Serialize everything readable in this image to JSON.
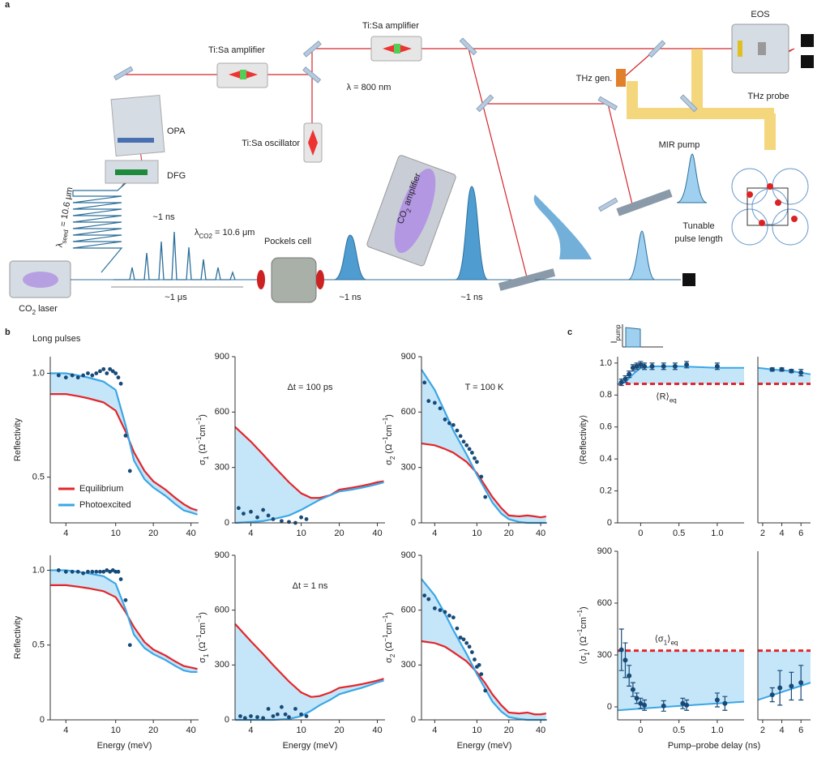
{
  "panel_labels": [
    "a",
    "b",
    "c"
  ],
  "diagram": {
    "labels": [
      "EOS",
      "Ti:Sa amplifier",
      "Ti:Sa amplifier",
      "λ = 800 nm",
      "THz gen.",
      "THz probe",
      "OPA",
      "DFG",
      "Ti:Sa oscillator",
      "MIR pump",
      "Tunable",
      "pulse length",
      "~1 ns",
      [
        {
          "t": "λ"
        },
        {
          "sub": "CO2"
        },
        {
          "t": " = 10.6 μm"
        }
      ],
      "Pockels cell",
      [
        {
          "t": "CO"
        },
        {
          "sub": "2"
        },
        {
          "t": " amplifier"
        }
      ],
      "~1 μs",
      "~1 ns",
      "~1 ns",
      [
        {
          "t": "CO"
        },
        {
          "sub": "2"
        },
        {
          "t": " laser"
        }
      ],
      [
        {
          "t": "λ"
        },
        {
          "sub": "seed"
        },
        {
          "t": " = 10.6 μm"
        }
      ]
    ]
  },
  "chart_data": [
    {
      "type": "line",
      "xlog": true,
      "title": "Long pulses",
      "ylabel": "Reflectivity",
      "xlim": [
        3,
        46
      ],
      "xticks": [
        4,
        10,
        20,
        40
      ],
      "ylim": [
        0.28,
        1.08
      ],
      "yticks": [
        0.5,
        {
          "value": 1,
          "label": "1.0"
        }
      ],
      "fill_color": "#c5e6f8",
      "x": [
        3,
        4,
        5,
        6,
        8,
        10,
        12,
        14,
        17,
        20,
        25,
        30,
        35,
        40,
        45
      ],
      "series": [
        {
          "name": "Equilibrium",
          "color": "#e3262b",
          "values": [
            0.9,
            0.9,
            0.89,
            0.88,
            0.86,
            0.82,
            0.72,
            0.62,
            0.53,
            0.48,
            0.44,
            0.4,
            0.37,
            0.35,
            0.34
          ]
        },
        {
          "name": "Photoexcited",
          "color": "#3ba6e6",
          "values": [
            1.0,
            1.0,
            0.99,
            0.98,
            0.96,
            0.92,
            0.75,
            0.58,
            0.49,
            0.45,
            0.41,
            0.37,
            0.34,
            0.33,
            0.32
          ]
        }
      ],
      "points": {
        "color": "#174a78",
        "x": [
          3.5,
          4,
          4.5,
          5,
          5.5,
          6,
          6.5,
          7,
          7.5,
          8,
          8.5,
          9,
          9.5,
          10,
          10.5,
          11,
          12,
          13
        ],
        "values": [
          0.99,
          0.98,
          0.99,
          0.98,
          0.99,
          1.0,
          0.99,
          1.0,
          1.01,
          1.02,
          1.0,
          1.02,
          1.01,
          1.0,
          0.98,
          0.95,
          0.7,
          0.53
        ]
      }
    },
    {
      "type": "line",
      "xlog": true,
      "annotation": "Δt = 100 ps",
      "ylabel": [
        {
          "t": "σ"
        },
        {
          "sub": "1"
        },
        {
          "t": " (Ω"
        },
        {
          "sup": "−1"
        },
        {
          "t": "cm"
        },
        {
          "sup": "−1"
        },
        {
          "t": ")"
        }
      ],
      "xlim": [
        3,
        46
      ],
      "xticks": [
        4,
        10,
        20,
        40
      ],
      "ylim": [
        0,
        900
      ],
      "yticks": [
        0,
        300,
        600,
        900
      ],
      "fill_color": "#c5e6f8",
      "x": [
        3,
        4,
        5,
        6,
        8,
        10,
        12,
        14,
        17,
        20,
        25,
        30,
        35,
        40,
        45
      ],
      "series": [
        {
          "color": "#e3262b",
          "values": [
            520,
            440,
            370,
            310,
            220,
            160,
            135,
            135,
            150,
            180,
            190,
            200,
            210,
            220,
            225
          ]
        },
        {
          "color": "#3ba6e6",
          "values": [
            0,
            5,
            10,
            20,
            40,
            70,
            100,
            125,
            150,
            170,
            180,
            190,
            200,
            210,
            220
          ]
        }
      ],
      "points": {
        "color": "#174a78",
        "x": [
          3.2,
          3.5,
          4,
          4.5,
          5,
          5.5,
          6,
          7,
          8,
          9,
          10,
          11
        ],
        "values": [
          80,
          50,
          60,
          30,
          70,
          40,
          20,
          10,
          5,
          0,
          30,
          20
        ]
      }
    },
    {
      "type": "line",
      "xlog": true,
      "annotation": "T = 100 K",
      "ylabel": [
        {
          "t": "σ"
        },
        {
          "sub": "2"
        },
        {
          "t": " (Ω"
        },
        {
          "sup": "−1"
        },
        {
          "t": "cm"
        },
        {
          "sup": "−1"
        },
        {
          "t": ")"
        }
      ],
      "xlim": [
        3,
        46
      ],
      "xticks": [
        4,
        10,
        20,
        40
      ],
      "ylim": [
        0,
        900
      ],
      "yticks": [
        0,
        300,
        600,
        900
      ],
      "fill_color": "#c5e6f8",
      "x": [
        3,
        4,
        5,
        6,
        8,
        10,
        12,
        14,
        17,
        20,
        25,
        30,
        35,
        40,
        45
      ],
      "series": [
        {
          "color": "#e3262b",
          "values": [
            430,
            420,
            400,
            380,
            330,
            270,
            200,
            140,
            80,
            40,
            35,
            40,
            35,
            30,
            35
          ]
        },
        {
          "color": "#3ba6e6",
          "values": [
            830,
            720,
            600,
            500,
            370,
            260,
            180,
            110,
            50,
            20,
            5,
            0,
            0,
            0,
            0
          ]
        }
      ],
      "points": {
        "color": "#174a78",
        "x": [
          3.2,
          3.5,
          4,
          4.5,
          5,
          5.5,
          6,
          6.5,
          7,
          7.5,
          8,
          8.5,
          9,
          9.5,
          10,
          11,
          12
        ],
        "values": [
          760,
          660,
          650,
          620,
          560,
          540,
          530,
          500,
          470,
          440,
          420,
          400,
          380,
          350,
          330,
          250,
          140
        ]
      }
    },
    {
      "type": "line",
      "xlog": true,
      "ylabel": "Reflectivity",
      "xlabel": "Energy (meV)",
      "xlim": [
        3,
        46
      ],
      "xticks": [
        4,
        10,
        20,
        40
      ],
      "ylim": [
        0,
        1.1
      ],
      "yticks": [
        0,
        0.5,
        {
          "value": 1,
          "label": "1.0"
        }
      ],
      "fill_color": "#c5e6f8",
      "x": [
        3,
        4,
        5,
        6,
        8,
        10,
        12,
        14,
        17,
        20,
        25,
        30,
        35,
        40,
        45
      ],
      "series": [
        {
          "color": "#e3262b",
          "values": [
            0.9,
            0.9,
            0.89,
            0.88,
            0.86,
            0.82,
            0.72,
            0.62,
            0.52,
            0.47,
            0.43,
            0.39,
            0.36,
            0.35,
            0.34
          ]
        },
        {
          "color": "#3ba6e6",
          "values": [
            1.0,
            1.0,
            0.99,
            0.98,
            0.96,
            0.91,
            0.74,
            0.57,
            0.48,
            0.44,
            0.4,
            0.36,
            0.33,
            0.32,
            0.32
          ]
        }
      ],
      "points": {
        "color": "#174a78",
        "x": [
          3.5,
          4,
          4.5,
          5,
          5.5,
          6,
          6.5,
          7,
          7.5,
          8,
          8.5,
          9,
          9.5,
          10,
          10.5,
          11,
          12,
          13
        ],
        "values": [
          1.0,
          0.99,
          0.99,
          0.99,
          0.98,
          0.99,
          0.99,
          0.99,
          0.99,
          0.99,
          1.0,
          0.99,
          1.0,
          0.99,
          0.99,
          0.94,
          0.8,
          0.5
        ]
      }
    },
    {
      "type": "line",
      "xlog": true,
      "annotation": "Δt = 1 ns",
      "ylabel": [
        {
          "t": "σ"
        },
        {
          "sub": "1"
        },
        {
          "t": " (Ω"
        },
        {
          "sup": "−1"
        },
        {
          "t": "cm"
        },
        {
          "sup": "−1"
        },
        {
          "t": ")"
        }
      ],
      "xlabel": "Energy (meV)",
      "xlim": [
        3,
        46
      ],
      "xticks": [
        4,
        10,
        20,
        40
      ],
      "ylim": [
        0,
        900
      ],
      "yticks": [
        0,
        300,
        600,
        900
      ],
      "fill_color": "#c5e6f8",
      "x": [
        3,
        4,
        5,
        6,
        8,
        10,
        12,
        14,
        17,
        20,
        25,
        30,
        35,
        40,
        45
      ],
      "series": [
        {
          "color": "#e3262b",
          "values": [
            525,
            430,
            360,
            300,
            210,
            150,
            125,
            130,
            150,
            175,
            185,
            195,
            205,
            215,
            225
          ]
        },
        {
          "color": "#3ba6e6",
          "values": [
            0,
            0,
            0,
            0,
            5,
            20,
            50,
            80,
            110,
            140,
            160,
            175,
            190,
            205,
            215
          ]
        }
      ],
      "points": {
        "color": "#174a78",
        "x": [
          3.3,
          3.6,
          4,
          4.5,
          5,
          5.5,
          6,
          6.5,
          7,
          7.5,
          8,
          9,
          10,
          11
        ],
        "values": [
          20,
          10,
          20,
          15,
          10,
          60,
          20,
          30,
          70,
          30,
          15,
          60,
          30,
          20
        ]
      }
    },
    {
      "type": "line",
      "xlog": true,
      "ylabel": [
        {
          "t": "σ"
        },
        {
          "sub": "2"
        },
        {
          "t": " (Ω"
        },
        {
          "sup": "−1"
        },
        {
          "t": "cm"
        },
        {
          "sup": "−1"
        },
        {
          "t": ")"
        }
      ],
      "xlabel": "Energy (meV)",
      "xlim": [
        3,
        46
      ],
      "xticks": [
        4,
        10,
        20,
        40
      ],
      "ylim": [
        0,
        900
      ],
      "yticks": [
        0,
        300,
        600,
        900
      ],
      "fill_color": "#c5e6f8",
      "x": [
        3,
        4,
        5,
        6,
        8,
        10,
        12,
        14,
        17,
        20,
        25,
        30,
        35,
        40,
        45
      ],
      "series": [
        {
          "color": "#e3262b",
          "values": [
            430,
            420,
            400,
            370,
            320,
            260,
            200,
            140,
            80,
            40,
            35,
            40,
            30,
            30,
            35
          ]
        },
        {
          "color": "#3ba6e6",
          "values": [
            770,
            680,
            580,
            490,
            360,
            250,
            170,
            100,
            45,
            15,
            5,
            0,
            0,
            0,
            0
          ]
        }
      ],
      "points": {
        "color": "#174a78",
        "x": [
          3.2,
          3.5,
          4,
          4.5,
          5,
          5.5,
          6,
          6.5,
          7,
          7.5,
          8,
          8.5,
          9,
          9.5,
          10,
          10.5,
          11,
          12
        ],
        "values": [
          680,
          660,
          610,
          600,
          590,
          570,
          560,
          500,
          450,
          440,
          420,
          400,
          370,
          330,
          290,
          300,
          250,
          160
        ]
      }
    },
    {
      "type": "errorbar",
      "ylabel": "⟨Reflectivity⟩",
      "inset_label": [
        {
          "t": "I"
        },
        {
          "sub": "pump"
        }
      ],
      "ylim": [
        0,
        1.04
      ],
      "yticks": [
        0,
        0.2,
        0.4,
        0.6,
        0.8,
        {
          "value": 1,
          "label": "1.0"
        }
      ],
      "curve_color": "#3ba6e6",
      "fill_color": "#c5e6f8",
      "points_color": "#174a78",
      "eq": {
        "value": 0.87,
        "label": [
          {
            "t": "⟨R⟩"
          },
          {
            "sub": "eq"
          }
        ],
        "color": "#e3262b"
      },
      "segments": [
        {
          "xlim": [
            -0.3,
            1.35
          ],
          "xticks": [
            0,
            0.5,
            {
              "value": 1,
              "label": "1.0"
            }
          ],
          "points": {
            "x": [
              -0.25,
              -0.2,
              -0.15,
              -0.1,
              -0.05,
              0,
              0.05,
              0.15,
              0.3,
              0.45,
              0.6,
              1.0
            ],
            "values": [
              0.88,
              0.9,
              0.93,
              0.97,
              0.98,
              0.99,
              0.98,
              0.98,
              0.98,
              0.98,
              0.99,
              0.98
            ],
            "errors": [
              0.02,
              0.02,
              0.02,
              0.02,
              0.02,
              0.02,
              0.02,
              0.02,
              0.02,
              0.02,
              0.02,
              0.02
            ]
          },
          "curve": {
            "x": [
              -0.3,
              -0.2,
              -0.1,
              0,
              0.2,
              0.5,
              1,
              1.35
            ],
            "values": [
              0.87,
              0.88,
              0.93,
              0.97,
              0.98,
              0.98,
              0.97,
              0.97
            ]
          }
        },
        {
          "xlim": [
            1.5,
            7
          ],
          "xticks": [
            2,
            4,
            6
          ],
          "points": {
            "x": [
              3,
              4,
              5,
              6
            ],
            "values": [
              0.96,
              0.96,
              0.95,
              0.94
            ],
            "errors": [
              0.01,
              0.01,
              0.01,
              0.02
            ]
          },
          "curve": {
            "x": [
              1.5,
              3,
              5,
              7
            ],
            "values": [
              0.97,
              0.96,
              0.95,
              0.93
            ]
          }
        }
      ]
    },
    {
      "type": "errorbar",
      "ylabel": [
        {
          "t": "⟨σ"
        },
        {
          "sub": "1"
        },
        {
          "t": "⟩ (Ω"
        },
        {
          "sup": "−1"
        },
        {
          "t": "cm"
        },
        {
          "sup": "−1"
        },
        {
          "t": ")"
        }
      ],
      "xlabel": "Pump–probe delay (ns)",
      "ylim": [
        -75,
        900
      ],
      "yticks": [
        0,
        300,
        600,
        900
      ],
      "curve_color": "#3ba6e6",
      "fill_color": "#c5e6f8",
      "points_color": "#174a78",
      "eq": {
        "value": 325,
        "label": [
          {
            "t": "⟨σ"
          },
          {
            "sub": "1"
          },
          {
            "t": "⟩"
          },
          {
            "sub": "eq"
          }
        ],
        "color": "#e3262b"
      },
      "segments": [
        {
          "xlim": [
            -0.3,
            1.35
          ],
          "xticks": [
            0,
            0.5,
            {
              "value": 1,
              "label": "1.0"
            }
          ],
          "points": {
            "x": [
              -0.25,
              -0.2,
              -0.15,
              -0.1,
              -0.05,
              0,
              0.05,
              0.3,
              0.55,
              0.6,
              1.0,
              1.1
            ],
            "values": [
              330,
              270,
              180,
              100,
              50,
              20,
              10,
              5,
              20,
              10,
              40,
              20
            ],
            "errors": [
              120,
              100,
              60,
              40,
              30,
              30,
              30,
              30,
              30,
              30,
              40,
              40
            ]
          },
          "curve": {
            "x": [
              -0.3,
              0,
              0.5,
              1,
              1.35
            ],
            "values": [
              -20,
              -10,
              5,
              20,
              30
            ]
          }
        },
        {
          "xlim": [
            1.5,
            7
          ],
          "xticks": [
            2,
            4,
            6
          ],
          "points": {
            "x": [
              3,
              3.8,
              5,
              6
            ],
            "values": [
              70,
              110,
              120,
              140
            ],
            "errors": [
              40,
              100,
              80,
              100
            ]
          },
          "curve": {
            "x": [
              1.5,
              7
            ],
            "values": [
              40,
              140
            ]
          }
        }
      ]
    }
  ]
}
